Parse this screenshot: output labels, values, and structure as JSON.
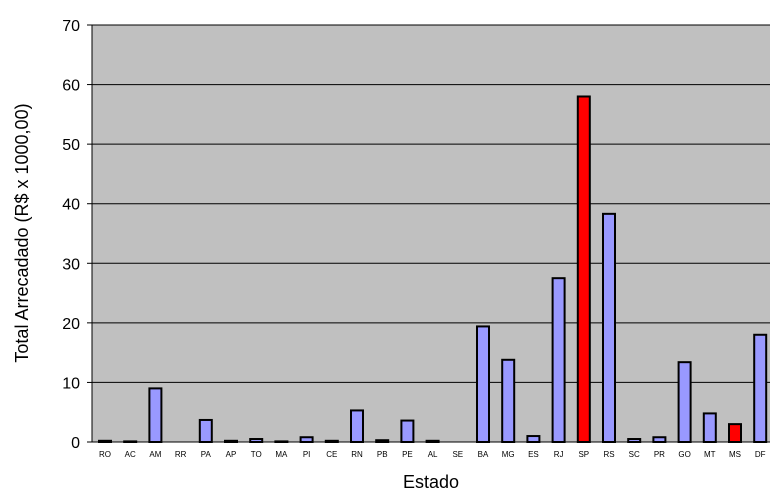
{
  "chart_data": {
    "type": "bar",
    "xlabel": "Estado",
    "ylabel": "Total Arrecadado (R$ x 1000,00)",
    "ylim": [
      0,
      70
    ],
    "yticks": [
      0,
      10,
      20,
      30,
      40,
      50,
      60,
      70
    ],
    "grid": true,
    "legend": "none",
    "categories": [
      "RO",
      "AC",
      "AM",
      "RR",
      "PA",
      "AP",
      "TO",
      "MA",
      "PI",
      "CE",
      "RN",
      "PB",
      "PE",
      "AL",
      "SE",
      "BA",
      "MG",
      "ES",
      "RJ",
      "SP",
      "RS",
      "SC",
      "PR",
      "GO",
      "MT",
      "MS",
      "DF"
    ],
    "values": [
      0.2,
      0.1,
      9.0,
      0.0,
      3.7,
      0.2,
      0.5,
      0.1,
      0.8,
      0.2,
      5.3,
      0.3,
      3.6,
      0.2,
      0.0,
      19.4,
      13.8,
      1.0,
      27.5,
      58.0,
      38.3,
      0.5,
      0.8,
      13.4,
      4.8,
      3.0,
      18.0
    ],
    "highlighted": [
      "SP",
      "MS"
    ],
    "colors": {
      "bar": "#9999ff",
      "highlight": "#ff0000",
      "plot_background": "#c0c0c0",
      "gridline": "#000000",
      "bar_border": "#000000"
    }
  }
}
